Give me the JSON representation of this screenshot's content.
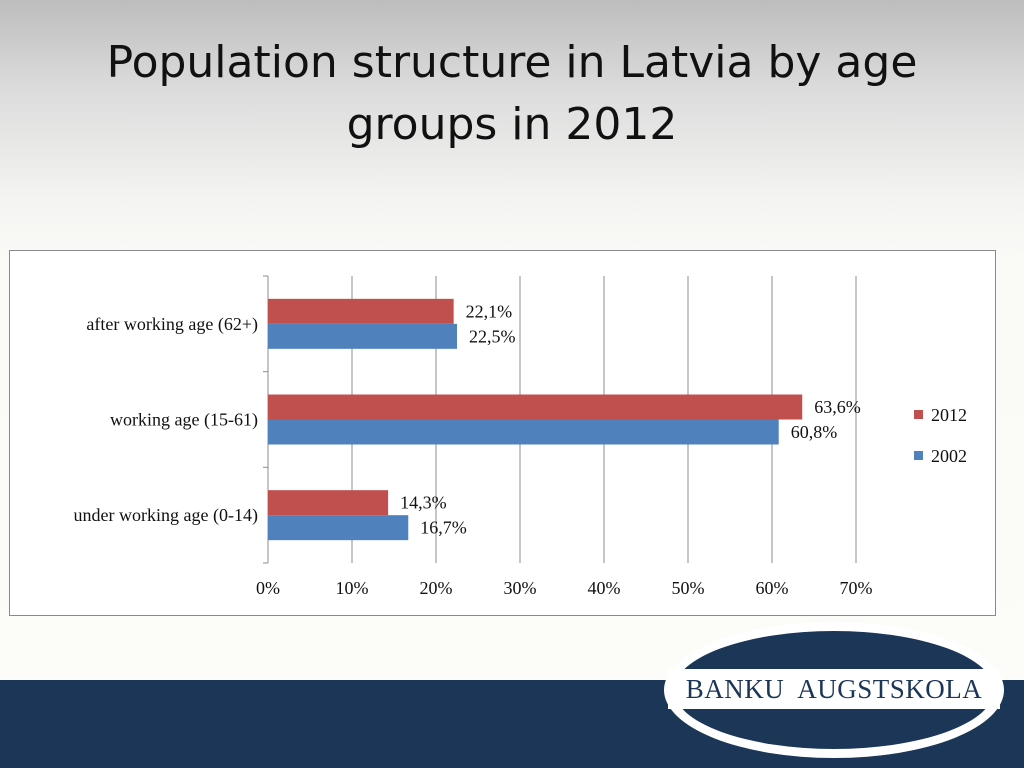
{
  "slide": {
    "title_line1": "Population structure in Latvia by age",
    "title_line2": "groups in 2012"
  },
  "logo": {
    "text": "BANKU  AUGSTSKOLA"
  },
  "colors": {
    "series_2012": "#c0504d",
    "series_2002": "#4f81bd",
    "footer": "#1c3658"
  },
  "chart_data": {
    "type": "bar",
    "orientation": "horizontal",
    "title": "",
    "xlabel": "",
    "ylabel": "",
    "categories": [
      "under working age (0-14)",
      "working age (15-61)",
      "after working age (62+)"
    ],
    "series": [
      {
        "name": "2012",
        "color": "#c0504d",
        "values": [
          14.3,
          63.6,
          22.1
        ],
        "labels": [
          "14,3%",
          "63,6%",
          "22,1%"
        ]
      },
      {
        "name": "2002",
        "color": "#4f81bd",
        "values": [
          16.7,
          60.8,
          22.5
        ],
        "labels": [
          "16,7%",
          "60,8%",
          "22,5%"
        ]
      }
    ],
    "xlim": [
      0,
      70
    ],
    "xticks": [
      0,
      10,
      20,
      30,
      40,
      50,
      60,
      70
    ],
    "xtick_labels": [
      "0%",
      "10%",
      "20%",
      "30%",
      "40%",
      "50%",
      "60%",
      "70%"
    ],
    "grid": "vertical",
    "legend": "right"
  }
}
